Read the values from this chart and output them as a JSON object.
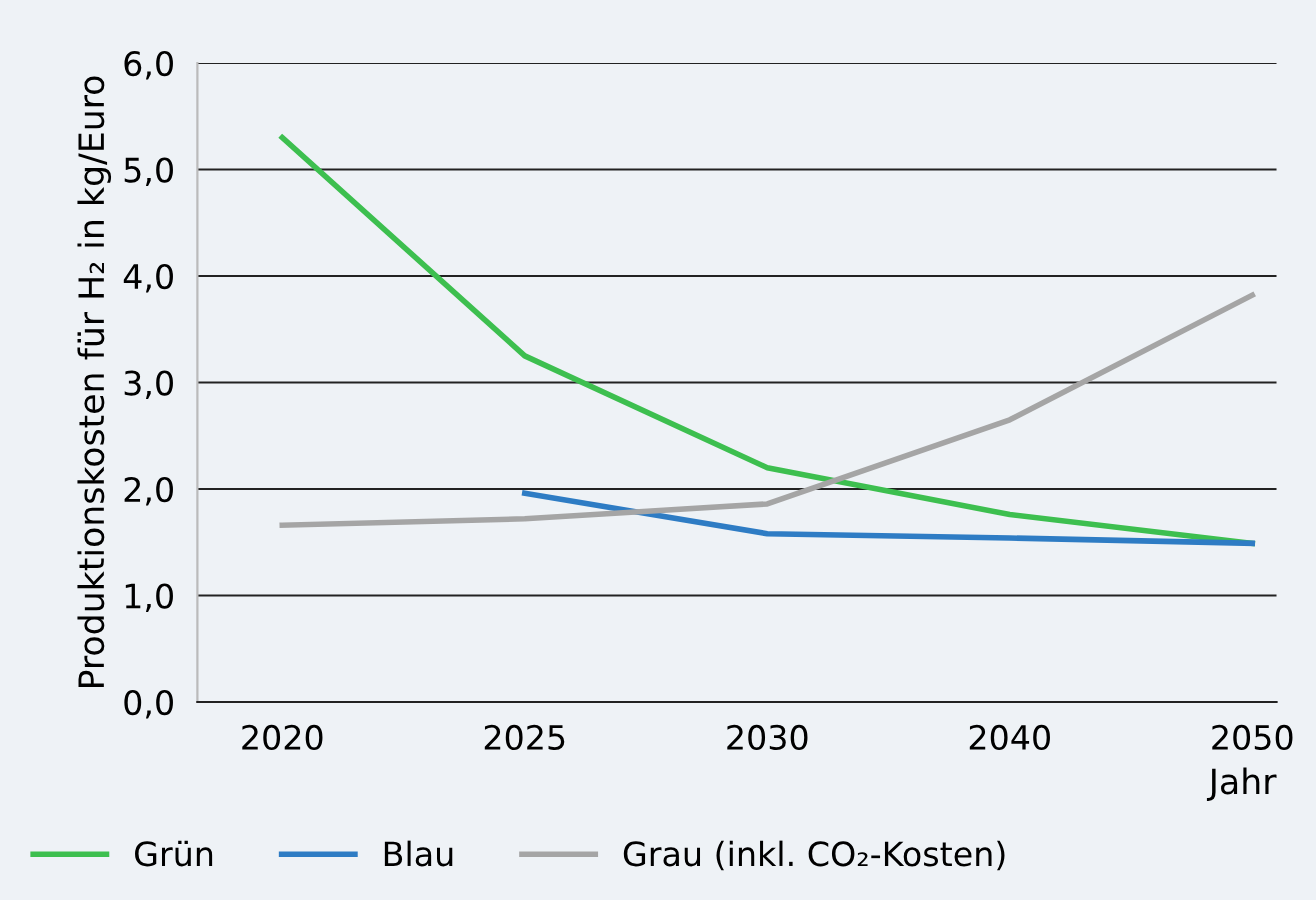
{
  "chart_data": {
    "type": "line",
    "ylabel": "Produktionskosten für H₂ in kg/Euro",
    "xlabel": "Jahr",
    "categories": [
      "2020",
      "2025",
      "2030",
      "2040",
      "2050"
    ],
    "series": [
      {
        "name": "Grün",
        "color": "#3dbf4f",
        "values": [
          5.3,
          3.25,
          2.2,
          1.76,
          1.49
        ]
      },
      {
        "name": "Blau",
        "color": "#2e7cc4",
        "values": [
          null,
          1.96,
          1.58,
          1.54,
          1.49
        ]
      },
      {
        "name": "Grau (inkl. CO₂-Kosten)",
        "color": "#a5a5a5",
        "values": [
          1.66,
          1.72,
          1.86,
          2.65,
          3.82
        ]
      }
    ],
    "ylim": [
      0,
      6
    ],
    "yticks": [
      {
        "value": 0,
        "label": "0,0"
      },
      {
        "value": 1,
        "label": "1,0"
      },
      {
        "value": 2,
        "label": "2,0"
      },
      {
        "value": 3,
        "label": "3,0"
      },
      {
        "value": 4,
        "label": "4,0"
      },
      {
        "value": 5,
        "label": "5,0"
      },
      {
        "value": 6,
        "label": "6,0"
      }
    ],
    "grid": "y",
    "legend": "bottom",
    "marker": "none",
    "line_style": "solid"
  }
}
